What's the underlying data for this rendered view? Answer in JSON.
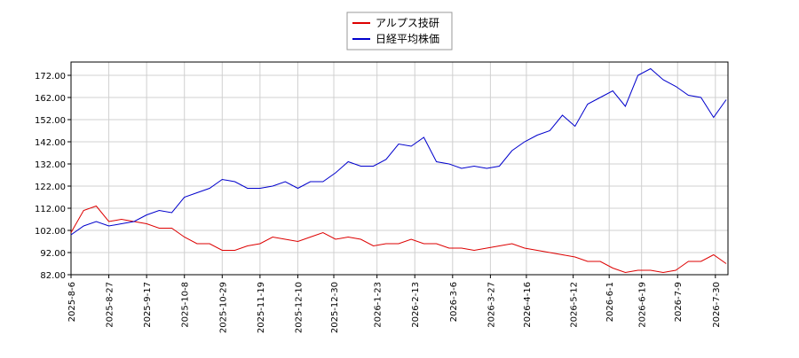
{
  "chart_data": {
    "type": "line",
    "x": [
      "2025-08-06",
      "2025-08-13",
      "2025-08-20",
      "2025-08-27",
      "2025-09-03",
      "2025-09-10",
      "2025-09-17",
      "2025-09-24",
      "2025-10-01",
      "2025-10-08",
      "2025-10-15",
      "2025-10-22",
      "2025-10-29",
      "2025-11-05",
      "2025-11-12",
      "2025-11-19",
      "2025-11-26",
      "2025-12-03",
      "2025-12-10",
      "2025-12-17",
      "2025-12-24",
      "2025-12-31",
      "2026-01-07",
      "2026-01-14",
      "2026-01-21",
      "2026-01-28",
      "2026-02-04",
      "2026-02-11",
      "2026-02-18",
      "2026-02-25",
      "2026-03-04",
      "2026-03-11",
      "2026-03-18",
      "2026-03-25",
      "2026-04-01",
      "2026-04-08",
      "2026-04-15",
      "2026-04-22",
      "2026-04-29",
      "2026-05-06",
      "2026-05-13",
      "2026-05-20",
      "2026-05-27",
      "2026-06-03",
      "2026-06-10",
      "2026-06-17",
      "2026-06-24",
      "2026-07-01",
      "2026-07-08",
      "2026-07-15",
      "2026-07-22",
      "2026-07-29",
      "2026-08-05"
    ],
    "series": [
      {
        "name": "アルプス技研",
        "color": "#dd0000",
        "values": [
          101,
          111,
          113,
          106,
          107,
          106,
          105,
          103,
          103,
          99,
          96,
          96,
          93,
          93,
          95,
          96,
          99,
          98,
          97,
          99,
          101,
          98,
          99,
          98,
          95,
          96,
          96,
          98,
          96,
          96,
          94,
          94,
          93,
          94,
          95,
          96,
          94,
          93,
          92,
          91,
          90,
          88,
          88,
          85,
          83,
          84,
          84,
          83,
          84,
          88,
          88,
          91,
          87
        ]
      },
      {
        "name": "日経平均株価",
        "color": "#0000cc",
        "values": [
          100,
          104,
          106,
          104,
          105,
          106,
          109,
          111,
          110,
          117,
          119,
          121,
          125,
          124,
          121,
          121,
          122,
          124,
          121,
          124,
          124,
          128,
          133,
          131,
          131,
          134,
          141,
          140,
          144,
          133,
          132,
          130,
          131,
          130,
          131,
          138,
          142,
          145,
          147,
          154,
          149,
          159,
          162,
          165,
          158,
          172,
          175,
          170,
          167,
          163,
          162,
          153,
          161
        ]
      }
    ],
    "xlim": [
      "2025-08-06",
      "2026-08-06"
    ],
    "xticks": [
      {
        "value": "2025-08-06",
        "label": "2025-8-6"
      },
      {
        "value": "2025-08-27",
        "label": "2025-8-27"
      },
      {
        "value": "2025-09-17",
        "label": "2025-9-17"
      },
      {
        "value": "2025-10-08",
        "label": "2025-10-8"
      },
      {
        "value": "2025-10-29",
        "label": "2025-10-29"
      },
      {
        "value": "2025-11-19",
        "label": "2025-11-19"
      },
      {
        "value": "2025-12-10",
        "label": "2025-12-10"
      },
      {
        "value": "2025-12-30",
        "label": "2025-12-30"
      },
      {
        "value": "2026-01-23",
        "label": "2026-1-23"
      },
      {
        "value": "2026-02-13",
        "label": "2026-2-13"
      },
      {
        "value": "2026-03-06",
        "label": "2026-3-6"
      },
      {
        "value": "2026-03-27",
        "label": "2026-3-27"
      },
      {
        "value": "2026-04-16",
        "label": "2026-4-16"
      },
      {
        "value": "2026-05-12",
        "label": "2026-5-12"
      },
      {
        "value": "2026-06-01",
        "label": "2026-6-1"
      },
      {
        "value": "2026-06-19",
        "label": "2026-6-19"
      },
      {
        "value": "2026-07-09",
        "label": "2026-7-9"
      },
      {
        "value": "2026-07-30",
        "label": "2026-7-30"
      }
    ],
    "ylim": [
      82,
      178
    ],
    "yticks": [
      {
        "value": 82,
        "label": "82.00"
      },
      {
        "value": 92,
        "label": "92.00"
      },
      {
        "value": 102,
        "label": "102.00"
      },
      {
        "value": 112,
        "label": "112.00"
      },
      {
        "value": 122,
        "label": "122.00"
      },
      {
        "value": 132,
        "label": "132.00"
      },
      {
        "value": 142,
        "label": "142.00"
      },
      {
        "value": 152,
        "label": "152.00"
      },
      {
        "value": 162,
        "label": "162.00"
      },
      {
        "value": 172,
        "label": "172.00"
      }
    ],
    "grid": true,
    "legend": "top"
  }
}
